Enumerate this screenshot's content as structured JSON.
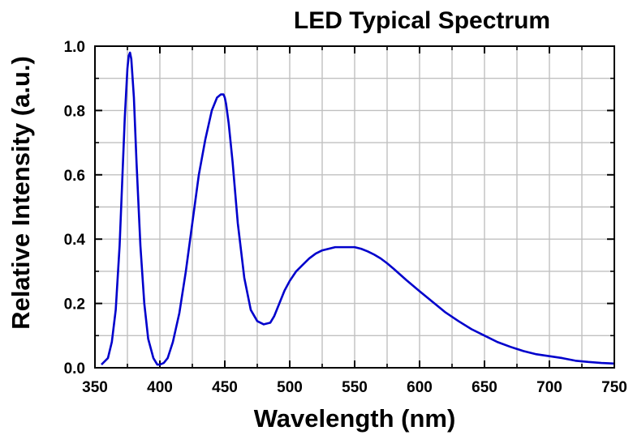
{
  "chart_data": {
    "type": "line",
    "title": "LED Typical Spectrum",
    "xlabel": "Wavelength (nm)",
    "ylabel": "Relative Intensity (a.u.)",
    "xlim": [
      350,
      750
    ],
    "ylim": [
      0.0,
      1.0
    ],
    "xticks": [
      "350",
      "400",
      "450",
      "500",
      "550",
      "600",
      "650",
      "700",
      "750"
    ],
    "yticks": [
      "0.0",
      "0.2",
      "0.4",
      "0.6",
      "0.8",
      "1.0"
    ],
    "grid": true,
    "line_color": "#0000cc",
    "grid_color": "#c0c0c0",
    "series": [
      {
        "x": [
          355,
          360,
          363,
          366,
          369,
          371,
          373,
          375,
          376,
          377,
          378,
          380,
          382,
          385,
          388,
          391,
          395,
          398,
          400,
          403,
          406,
          410,
          415,
          420,
          425,
          430,
          435,
          440,
          444,
          447,
          449,
          450,
          451,
          453,
          456,
          460,
          465,
          470,
          475,
          480,
          485,
          488,
          492,
          496,
          500,
          505,
          510,
          515,
          520,
          525,
          530,
          535,
          540,
          545,
          550,
          555,
          560,
          565,
          570,
          575,
          580,
          585,
          590,
          595,
          600,
          610,
          620,
          630,
          640,
          650,
          660,
          670,
          680,
          690,
          700,
          710,
          720,
          730,
          740,
          750
        ],
        "y": [
          0.01,
          0.03,
          0.08,
          0.18,
          0.38,
          0.58,
          0.78,
          0.93,
          0.97,
          0.98,
          0.96,
          0.84,
          0.64,
          0.38,
          0.2,
          0.09,
          0.03,
          0.01,
          0.01,
          0.015,
          0.03,
          0.08,
          0.17,
          0.3,
          0.45,
          0.6,
          0.71,
          0.8,
          0.84,
          0.85,
          0.85,
          0.84,
          0.82,
          0.76,
          0.64,
          0.45,
          0.28,
          0.18,
          0.145,
          0.135,
          0.14,
          0.16,
          0.2,
          0.24,
          0.27,
          0.3,
          0.32,
          0.34,
          0.355,
          0.365,
          0.37,
          0.375,
          0.375,
          0.375,
          0.375,
          0.37,
          0.362,
          0.352,
          0.34,
          0.325,
          0.308,
          0.29,
          0.272,
          0.255,
          0.238,
          0.205,
          0.172,
          0.145,
          0.12,
          0.1,
          0.08,
          0.065,
          0.052,
          0.042,
          0.036,
          0.03,
          0.022,
          0.018,
          0.015,
          0.013
        ]
      }
    ]
  }
}
